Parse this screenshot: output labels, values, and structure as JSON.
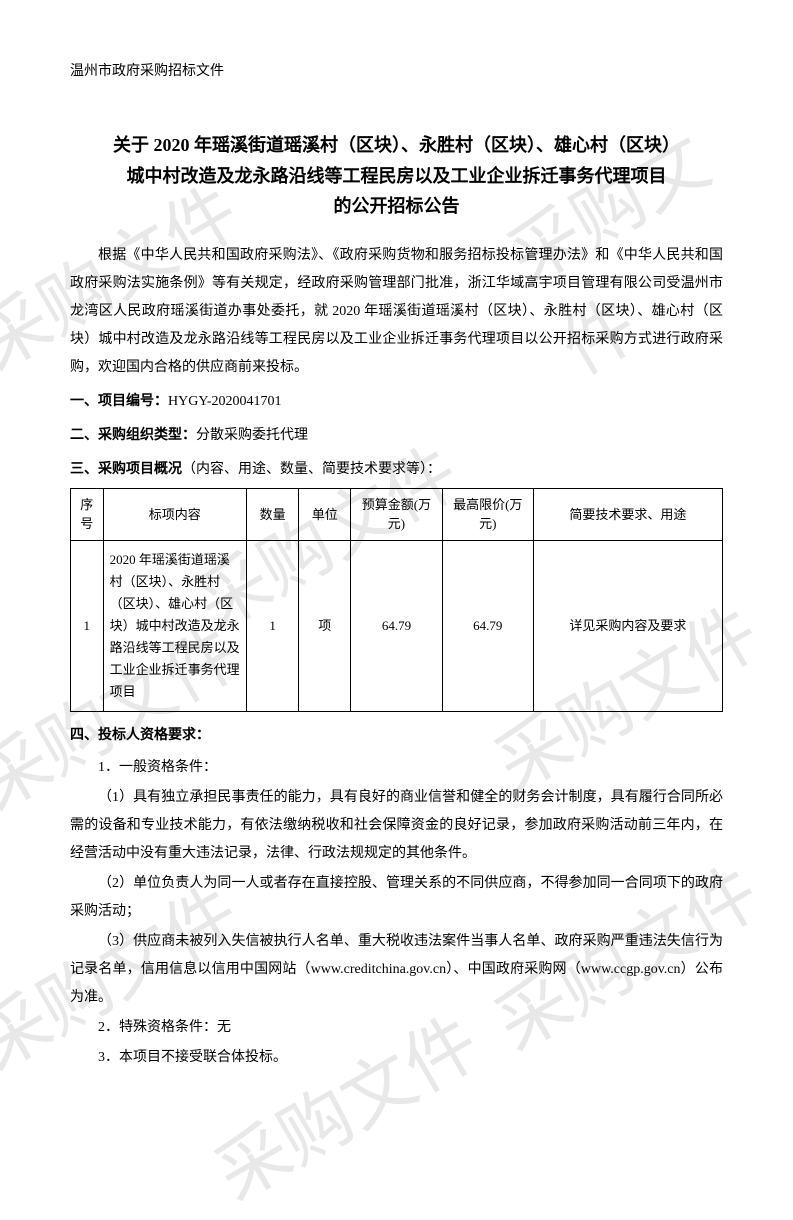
{
  "watermark_text": "采购文件",
  "header": "温州市政府采购招标文件",
  "title_line1": "关于 2020 年瑶溪街道瑶溪村（区块）、永胜村（区块）、雄心村（区块）",
  "title_line2": "城中村改造及龙永路沿线等工程民房以及工业企业拆迁事务代理项目",
  "title_line3": "的公开招标公告",
  "intro": "根据《中华人民共和国政府采购法》、《政府采购货物和服务招标投标管理办法》和《中华人民共和国政府采购法实施条例》等有关规定，经政府采购管理部门批准，浙江华域高宇项目管理有限公司受温州市龙湾区人民政府瑶溪街道办事处委托，就 2020 年瑶溪街道瑶溪村（区块）、永胜村（区块）、雄心村（区块）城中村改造及龙永路沿线等工程民房以及工业企业拆迁事务代理项目以公开招标采购方式进行政府采购，欢迎国内合格的供应商前来投标。",
  "section1_label": "一、项目编号：",
  "section1_value": "HYGY-2020041701",
  "section2_label": "二、采购组织类型：",
  "section2_value": "分散采购委托代理",
  "section3_label": "三、采购项目概况",
  "section3_desc": "（内容、用途、数量、简要技术要求等）：",
  "table": {
    "headers": {
      "seq": "序号",
      "content": "标项内容",
      "qty": "数量",
      "unit": "单位",
      "budget": "预算金额(万元)",
      "max": "最高限价(万元)",
      "desc": "简要技术要求、用途"
    },
    "row": {
      "seq": "1",
      "content": "2020 年瑶溪街道瑶溪村（区块）、永胜村（区块）、雄心村（区块）城中村改造及龙永路沿线等工程民房以及工业企业拆迁事务代理项目",
      "qty": "1",
      "unit": "项",
      "budget": "64.79",
      "max": "64.79",
      "desc": "详见采购内容及要求"
    }
  },
  "section4_label": "四、投标人资格要求：",
  "req1_label": "1．一般资格条件：",
  "req1_1": "（1）具有独立承担民事责任的能力，具有良好的商业信誉和健全的财务会计制度，具有履行合同所必需的设备和专业技术能力，有依法缴纳税收和社会保障资金的良好记录，参加政府采购活动前三年内，在经营活动中没有重大违法记录，法律、行政法规规定的其他条件。",
  "req1_2": "（2）单位负责人为同一人或者存在直接控股、管理关系的不同供应商，不得参加同一合同项下的政府采购活动；",
  "req1_3": "（3）供应商未被列入失信被执行人名单、重大税收违法案件当事人名单、政府采购严重违法失信行为记录名单，信用信息以信用中国网站（www.creditchina.gov.cn）、中国政府采购网（www.ccgp.gov.cn）公布为准。",
  "req2": "2．特殊资格条件：无",
  "req3": "3．本项目不接受联合体投标。"
}
